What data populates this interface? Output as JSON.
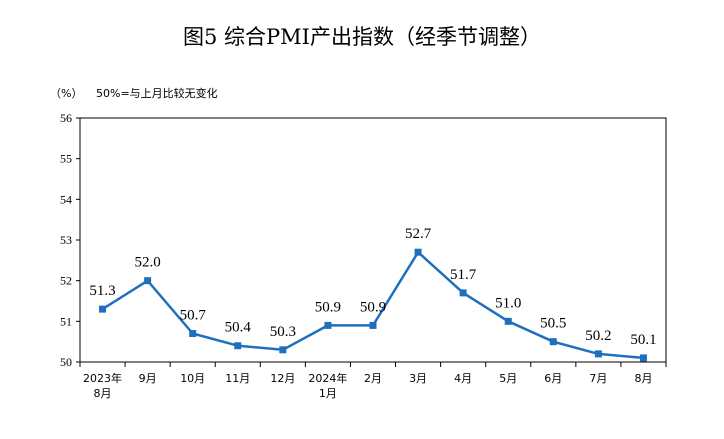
{
  "chart_data": {
    "type": "line",
    "title": "图5  综合PMI产出指数（经季节调整）",
    "ylabel": "（%）",
    "note": "50%=与上月比较无变化",
    "ylim": [
      50,
      56
    ],
    "yticks": [
      "50",
      "51",
      "52",
      "53",
      "54",
      "55",
      "56"
    ],
    "categories": [
      [
        "2023年",
        "8月"
      ],
      [
        "9月"
      ],
      [
        "10月"
      ],
      [
        "11月"
      ],
      [
        "12月"
      ],
      [
        "2024年",
        "1月"
      ],
      [
        "2月"
      ],
      [
        "3月"
      ],
      [
        "4月"
      ],
      [
        "5月"
      ],
      [
        "6月"
      ],
      [
        "7月"
      ],
      [
        "8月"
      ]
    ],
    "series": [
      {
        "values": [
          51.3,
          52.0,
          50.7,
          50.4,
          50.3,
          50.9,
          50.9,
          52.7,
          51.7,
          51.0,
          50.5,
          50.2,
          50.1
        ],
        "labels": [
          "51.3",
          "52.0",
          "50.7",
          "50.4",
          "50.3",
          "50.9",
          "50.9",
          "52.7",
          "51.7",
          "51.0",
          "50.5",
          "50.2",
          "50.1"
        ],
        "color": "#1f6fbf"
      }
    ],
    "grid": false,
    "legend": "none"
  }
}
